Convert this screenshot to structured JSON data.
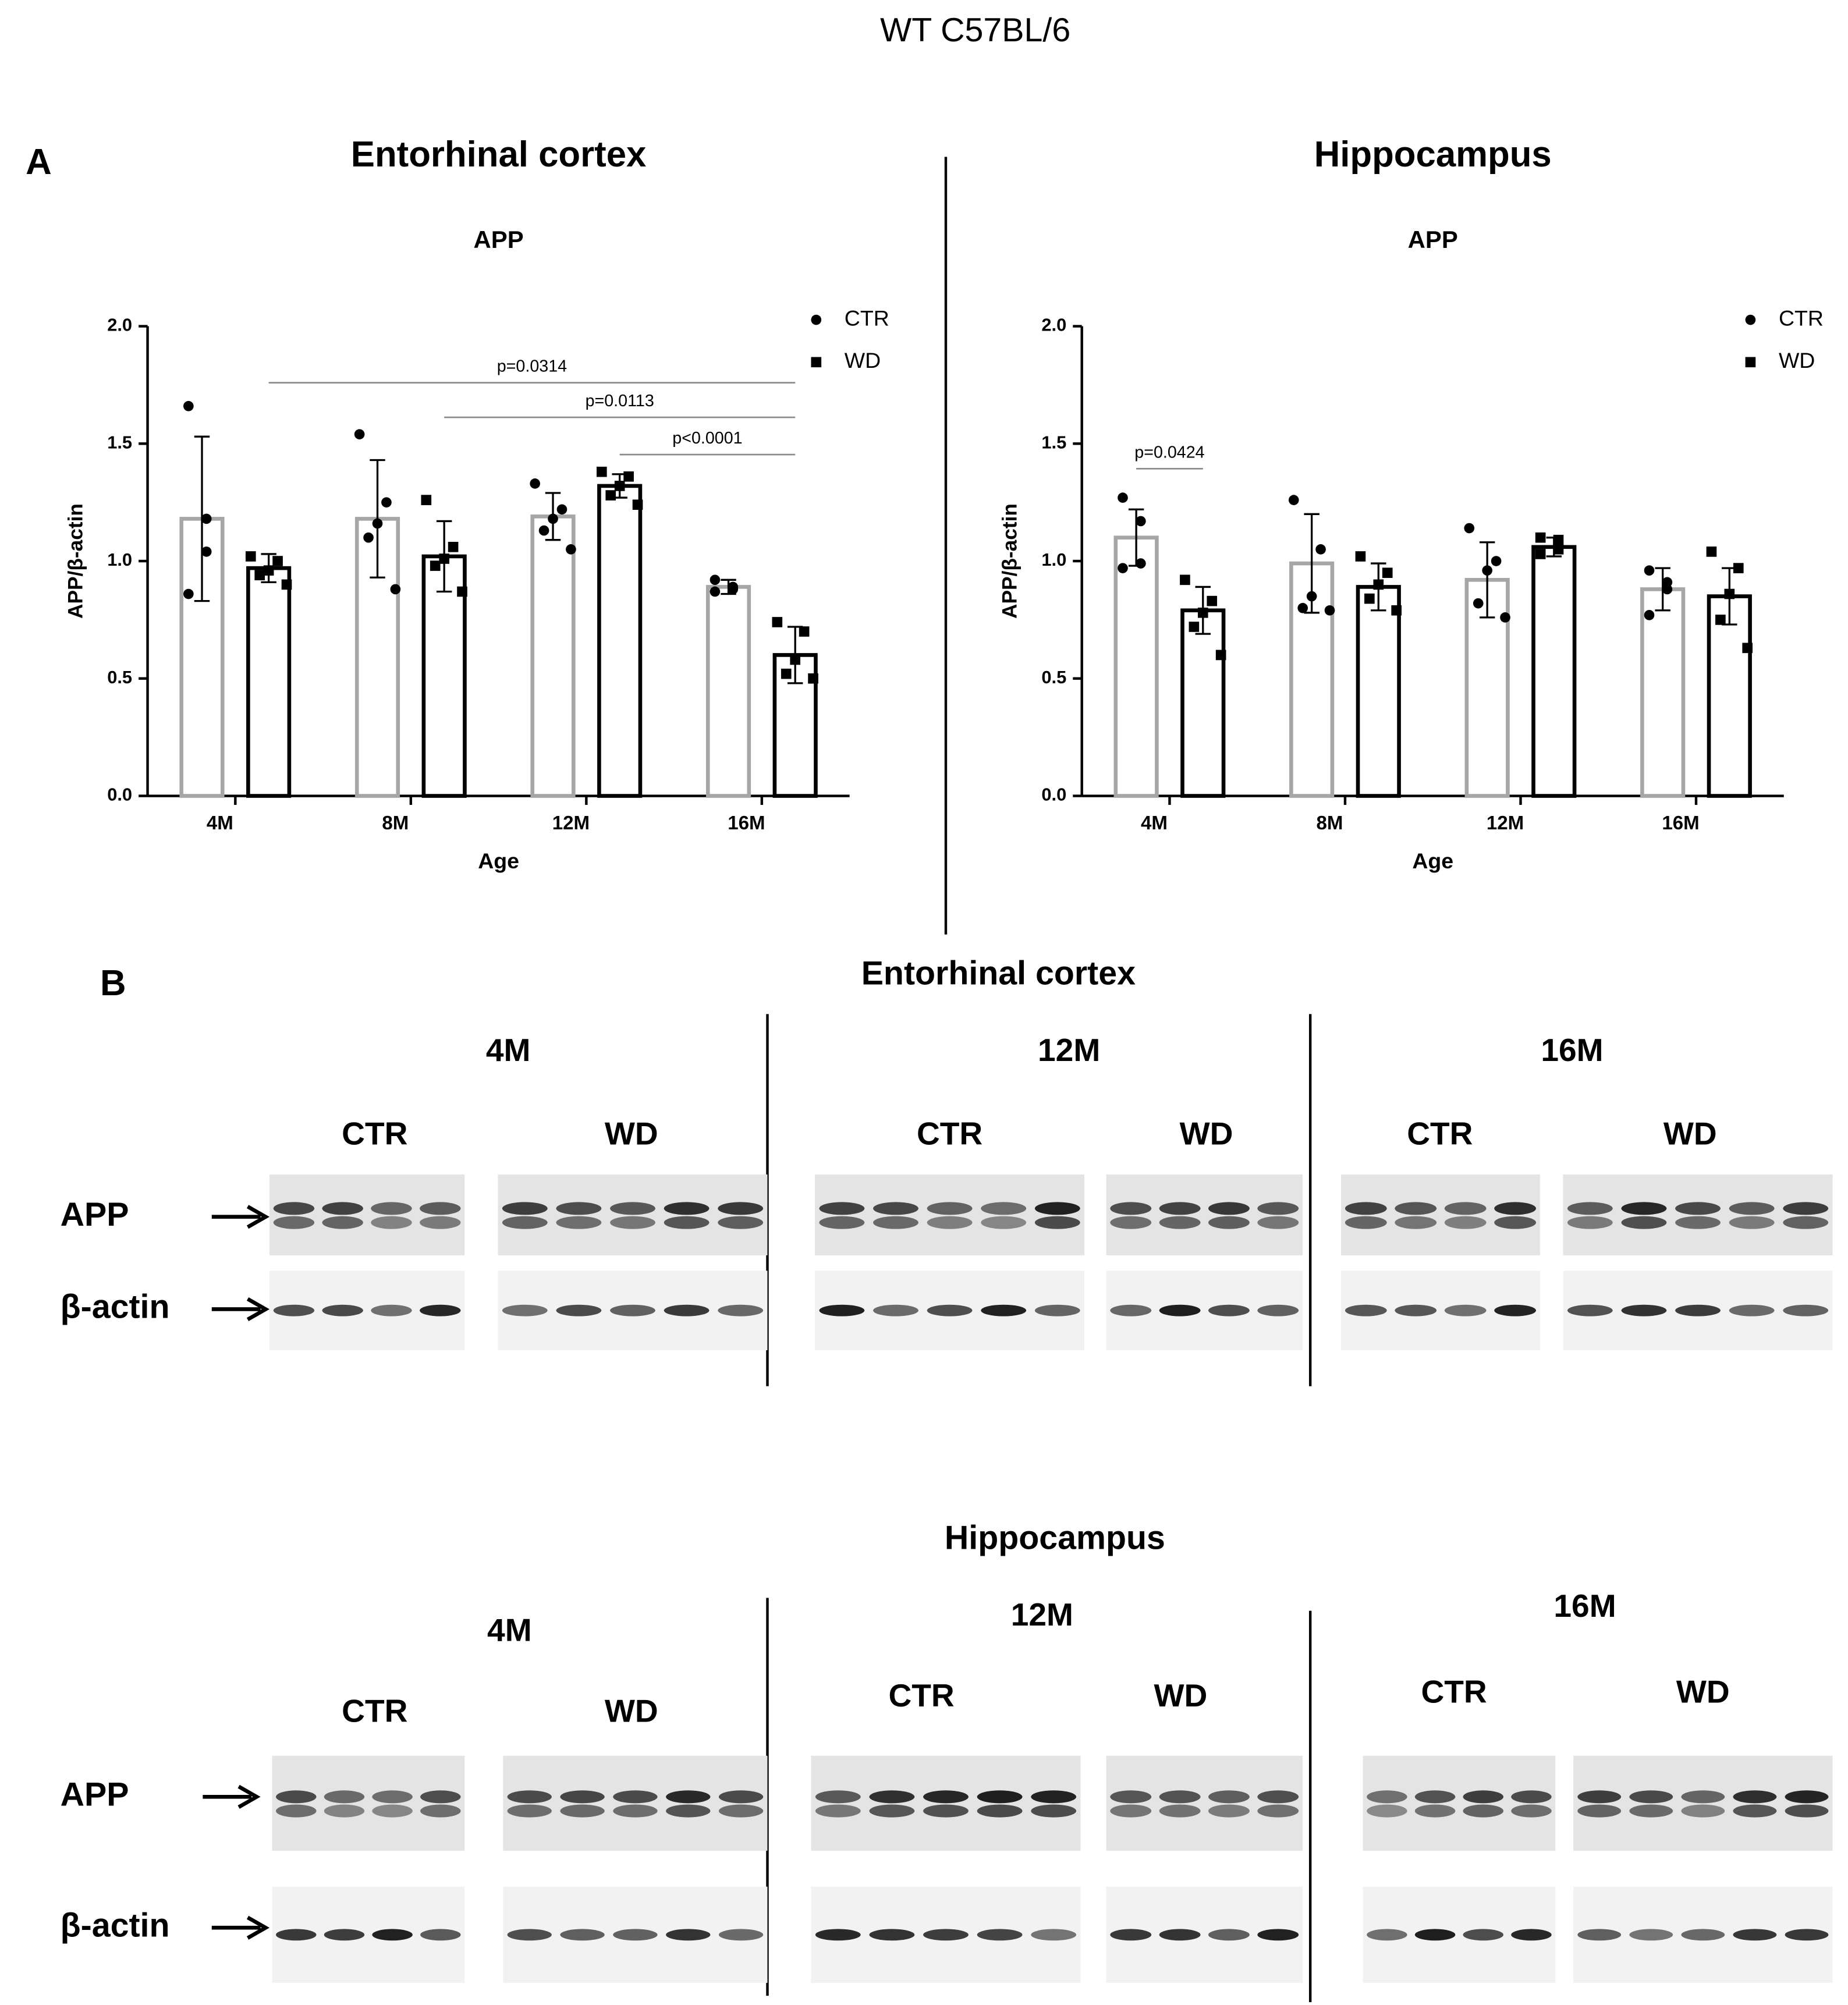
{
  "title": "WT C57BL/6",
  "panel_a_label": "A",
  "chart_data": [
    {
      "type": "bar",
      "title": "Entorhinal cortex",
      "subtitle": "APP",
      "x_label": "Age",
      "y_label": "APP/β-actin",
      "categories": [
        "4M",
        "8M",
        "12M",
        "16M"
      ],
      "series": [
        {
          "name": "CTR",
          "color": "#a6a6a6",
          "values": [
            1.18,
            1.18,
            1.19,
            0.89
          ],
          "errors": [
            0.35,
            0.25,
            0.1,
            0.03
          ],
          "points": [
            [
              1.66,
              1.18,
              1.04,
              0.86
            ],
            [
              1.54,
              1.25,
              1.16,
              1.1,
              0.88
            ],
            [
              1.33,
              1.22,
              1.18,
              1.13,
              1.05
            ],
            [
              0.92,
              0.89,
              0.88,
              0.87
            ]
          ]
        },
        {
          "name": "WD",
          "color": "#000000",
          "values": [
            0.97,
            1.02,
            1.32,
            0.6
          ],
          "errors": [
            0.06,
            0.15,
            0.05,
            0.12
          ],
          "points": [
            [
              1.02,
              1.0,
              0.96,
              0.94,
              0.9
            ],
            [
              1.26,
              1.06,
              1.01,
              0.98,
              0.87
            ],
            [
              1.38,
              1.36,
              1.32,
              1.28,
              1.24
            ],
            [
              0.74,
              0.7,
              0.58,
              0.52,
              0.5
            ]
          ]
        }
      ],
      "ylim": [
        0,
        2
      ],
      "yticks": [
        {
          "value": 0,
          "label": "0.0"
        },
        {
          "value": 0.5,
          "label": "0.5"
        },
        {
          "value": 1,
          "label": "1.0"
        },
        {
          "value": 1.5,
          "label": "1.5"
        },
        {
          "value": 2,
          "label": "2.0"
        }
      ],
      "annotations": [
        "p=0.0314",
        "p=0.0113",
        "p<0.0001"
      ]
    },
    {
      "type": "bar",
      "title": "Hippocampus",
      "subtitle": "APP",
      "x_label": "Age",
      "y_label": "APP/β-actin",
      "categories": [
        "4M",
        "8M",
        "12M",
        "16M"
      ],
      "series": [
        {
          "name": "CTR",
          "color": "#a6a6a6",
          "values": [
            1.1,
            0.99,
            0.92,
            0.88
          ],
          "errors": [
            0.12,
            0.21,
            0.16,
            0.09
          ],
          "points": [
            [
              1.27,
              1.17,
              0.99,
              0.97
            ],
            [
              1.26,
              1.05,
              0.85,
              0.8,
              0.79
            ],
            [
              1.14,
              1.0,
              0.96,
              0.82,
              0.76
            ],
            [
              0.96,
              0.91,
              0.88,
              0.77
            ]
          ]
        },
        {
          "name": "WD",
          "color": "#000000",
          "values": [
            0.79,
            0.89,
            1.06,
            0.85
          ],
          "errors": [
            0.1,
            0.1,
            0.04,
            0.12
          ],
          "points": [
            [
              0.92,
              0.83,
              0.78,
              0.72,
              0.6
            ],
            [
              1.02,
              0.95,
              0.9,
              0.84,
              0.79
            ],
            [
              1.1,
              1.09,
              1.05,
              1.03
            ],
            [
              1.04,
              0.97,
              0.86,
              0.75,
              0.63
            ]
          ]
        }
      ],
      "ylim": [
        0,
        2
      ],
      "yticks": [
        {
          "value": 0,
          "label": "0.0"
        },
        {
          "value": 0.5,
          "label": "0.5"
        },
        {
          "value": 1,
          "label": "1.0"
        },
        {
          "value": 1.5,
          "label": "1.5"
        },
        {
          "value": 2,
          "label": "2.0"
        }
      ],
      "annotations": [
        "p=0.0424"
      ]
    }
  ],
  "blots": {
    "label": "B",
    "rows": [
      "APP",
      "β-actin"
    ],
    "sections": [
      {
        "title": "Entorhinal cortex",
        "ages": [
          "4M",
          "12M",
          "16M"
        ],
        "conditions": [
          "CTR",
          "WD",
          "CTR",
          "WD",
          "CTR",
          "WD"
        ]
      },
      {
        "title": "Hippocampus",
        "ages": [
          "4M",
          "12M",
          "16M"
        ],
        "conditions": [
          "CTR",
          "WD",
          "CTR",
          "WD",
          "CTR",
          "WD"
        ]
      }
    ]
  }
}
